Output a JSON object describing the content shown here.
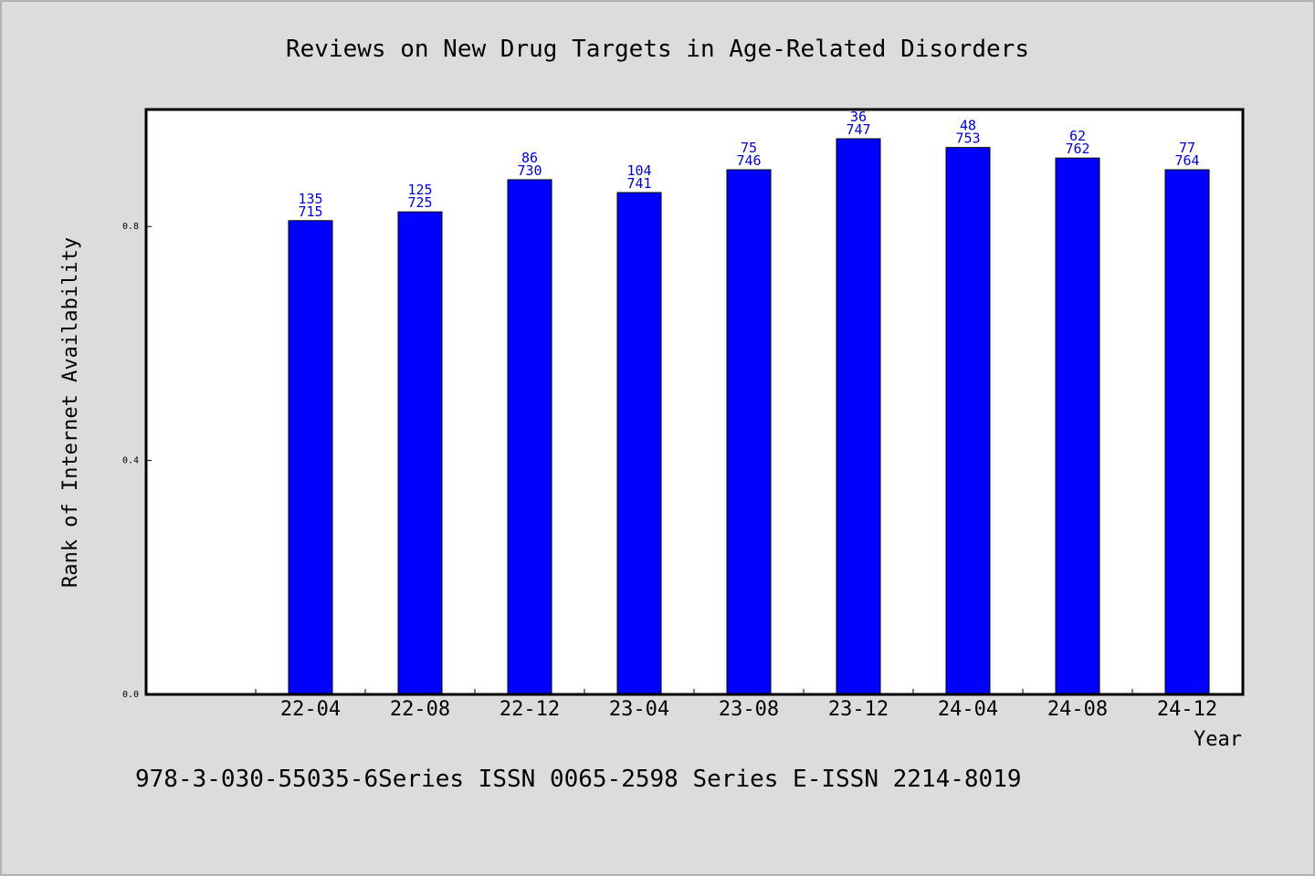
{
  "chart_data": {
    "type": "bar",
    "title": "Reviews on New Drug Targets in Age-Related Disorders",
    "xlabel": "Year",
    "ylabel": "Rank of Internet Availability",
    "categories": [
      "22-04",
      "22-08",
      "22-12",
      "23-04",
      "23-08",
      "23-12",
      "24-04",
      "24-08",
      "24-12"
    ],
    "series": [
      {
        "values": [
          0.81,
          0.825,
          0.88,
          0.858,
          0.897,
          0.95,
          0.935,
          0.917,
          0.897
        ],
        "labels_top": [
          "135",
          "125",
          "86",
          "104",
          "75",
          "36",
          "48",
          "62",
          "77"
        ],
        "labels_bottom": [
          "715",
          "725",
          "730",
          "741",
          "746",
          "747",
          "753",
          "762",
          "764"
        ]
      }
    ],
    "yticks": [
      "0.0",
      "0.4",
      "0.8"
    ],
    "ylim": [
      0,
      1.0
    ],
    "bar_color": "#0000ff",
    "label_color": "#0000cc",
    "background_color": "#dcdcdc",
    "plot_background": "#ffffff",
    "grid": false
  },
  "footer": {
    "text": "978-3-030-55035-6Series ISSN 0065-2598 Series E-ISSN 2214-8019"
  }
}
